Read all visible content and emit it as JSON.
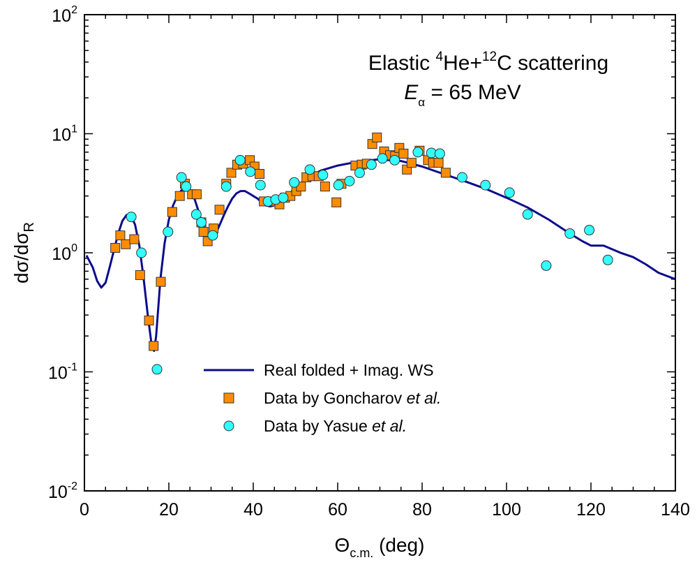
{
  "chart_data": {
    "type": "scatter",
    "x_axis": {
      "label": "Θ",
      "label_subscript": "c.m.",
      "label_suffix": " (deg)",
      "range": [
        0,
        140
      ],
      "ticks": [
        0,
        20,
        40,
        60,
        80,
        100,
        120,
        140
      ],
      "tick_labels": [
        "0",
        "20",
        "40",
        "60",
        "80",
        "100",
        "120",
        "140"
      ]
    },
    "y_axis": {
      "label": "dσ/dσ",
      "label_subscript": "R",
      "scale": "log",
      "range": [
        0.01,
        100
      ],
      "ticks": [
        0.01,
        0.1,
        1,
        10,
        100
      ],
      "tick_labels": [
        {
          "base": "10",
          "exp": "-2"
        },
        {
          "base": "10",
          "exp": "-1"
        },
        {
          "base": "10",
          "exp": "0"
        },
        {
          "base": "10",
          "exp": "1"
        },
        {
          "base": "10",
          "exp": "2"
        }
      ]
    },
    "annotation": {
      "line1_prefix": "Elastic ",
      "sup1": "4",
      "mid": "He+",
      "sup2": "12",
      "line1_suffix": "C scattering",
      "line2_var": "E",
      "line2_sub": "α",
      "line2_value": " = 65 MeV"
    },
    "legend": {
      "placement": "lower-center",
      "entries": [
        {
          "label": "Real folded + Imag. WS",
          "italic": ""
        },
        {
          "label": "Data by Goncharov ",
          "italic": "et al."
        },
        {
          "label": "Data by Yasue ",
          "italic": "et al."
        }
      ]
    },
    "series": [
      {
        "name": "Real folded + Imag. WS",
        "kind": "line",
        "color": "#0a0a8c",
        "points": [
          [
            0.5,
            0.95
          ],
          [
            2,
            0.75
          ],
          [
            3,
            0.58
          ],
          [
            4,
            0.51
          ],
          [
            5,
            0.56
          ],
          [
            6,
            0.76
          ],
          [
            7,
            1.05
          ],
          [
            8,
            1.45
          ],
          [
            9,
            1.85
          ],
          [
            10,
            2.08
          ],
          [
            11,
            2.05
          ],
          [
            12,
            1.72
          ],
          [
            13,
            1.15
          ],
          [
            14,
            0.62
          ],
          [
            15,
            0.3
          ],
          [
            16,
            0.16
          ],
          [
            16.5,
            0.15
          ],
          [
            17,
            0.2
          ],
          [
            18,
            0.6
          ],
          [
            19,
            1.2
          ],
          [
            20,
            1.9
          ],
          [
            21,
            2.5
          ],
          [
            22,
            3.0
          ],
          [
            23,
            3.35
          ],
          [
            24,
            3.5
          ],
          [
            25,
            3.4
          ],
          [
            26,
            2.9
          ],
          [
            27,
            2.25
          ],
          [
            28,
            1.7
          ],
          [
            29,
            1.38
          ],
          [
            30,
            1.3
          ],
          [
            31,
            1.42
          ],
          [
            32,
            1.7
          ],
          [
            33,
            2.05
          ],
          [
            34,
            2.45
          ],
          [
            35,
            2.85
          ],
          [
            36,
            3.15
          ],
          [
            37,
            3.3
          ],
          [
            38,
            3.3
          ],
          [
            39,
            3.15
          ],
          [
            40,
            3.0
          ],
          [
            41,
            2.85
          ],
          [
            42,
            2.65
          ],
          [
            43,
            2.5
          ],
          [
            44,
            2.45
          ],
          [
            45,
            2.5
          ],
          [
            47,
            2.8
          ],
          [
            50,
            3.5
          ],
          [
            53,
            4.3
          ],
          [
            56,
            4.9
          ],
          [
            60,
            5.4
          ],
          [
            65,
            5.85
          ],
          [
            70,
            6.1
          ],
          [
            72,
            6.0
          ],
          [
            75,
            5.9
          ],
          [
            80,
            5.3
          ],
          [
            85,
            4.6
          ],
          [
            90,
            4.0
          ],
          [
            95,
            3.45
          ],
          [
            100,
            2.9
          ],
          [
            105,
            2.4
          ],
          [
            110,
            1.9
          ],
          [
            115,
            1.45
          ],
          [
            118,
            1.25
          ],
          [
            120,
            1.15
          ],
          [
            123,
            1.15
          ],
          [
            127,
            1.0
          ],
          [
            130,
            0.92
          ],
          [
            133,
            0.8
          ],
          [
            136,
            0.68
          ],
          [
            140,
            0.6
          ]
        ]
      },
      {
        "name": "Data by Goncharov et al.",
        "kind": "square",
        "color": "#ff8c00",
        "points": [
          [
            7.3,
            1.1
          ],
          [
            8.5,
            1.4
          ],
          [
            9.8,
            1.18
          ],
          [
            11.8,
            1.3
          ],
          [
            13.2,
            0.65
          ],
          [
            15.3,
            0.27
          ],
          [
            16.4,
            0.165
          ],
          [
            18.1,
            0.57
          ],
          [
            20.8,
            2.2
          ],
          [
            22.6,
            3.0
          ],
          [
            23.8,
            3.8
          ],
          [
            25.5,
            3.1
          ],
          [
            26.6,
            3.1
          ],
          [
            27.7,
            1.8
          ],
          [
            28.2,
            1.5
          ],
          [
            29.2,
            1.25
          ],
          [
            30.6,
            1.6
          ],
          [
            32.0,
            2.3
          ],
          [
            33.6,
            3.8
          ],
          [
            34.8,
            4.7
          ],
          [
            36.2,
            5.5
          ],
          [
            37.6,
            5.6
          ],
          [
            39.2,
            6.0
          ],
          [
            40.3,
            5.3
          ],
          [
            41.5,
            4.6
          ],
          [
            42.5,
            2.7
          ],
          [
            44.9,
            2.7
          ],
          [
            46.2,
            2.55
          ],
          [
            47.5,
            2.9
          ],
          [
            48.8,
            3.0
          ],
          [
            50.2,
            3.3
          ],
          [
            51.3,
            3.6
          ],
          [
            52.6,
            4.3
          ],
          [
            54.0,
            4.4
          ],
          [
            55.5,
            4.4
          ],
          [
            57.0,
            3.6
          ],
          [
            59.7,
            2.65
          ],
          [
            60.9,
            3.8
          ],
          [
            64.2,
            5.4
          ],
          [
            65.7,
            5.5
          ],
          [
            66.9,
            5.6
          ],
          [
            68.2,
            8.2
          ],
          [
            69.3,
            9.3
          ],
          [
            71.0,
            7.1
          ],
          [
            72.4,
            6.6
          ],
          [
            73.6,
            6.5
          ],
          [
            74.6,
            7.6
          ],
          [
            75.6,
            6.8
          ],
          [
            76.4,
            5.0
          ],
          [
            77.5,
            5.7
          ],
          [
            79.4,
            7.2
          ],
          [
            81.4,
            6.0
          ],
          [
            82.6,
            5.7
          ],
          [
            83.9,
            5.7
          ],
          [
            85.6,
            4.7
          ]
        ]
      },
      {
        "name": "Data by Yasue et al.",
        "kind": "circle",
        "color": "#33ffff",
        "points": [
          [
            11.1,
            2.0
          ],
          [
            13.5,
            1.0
          ],
          [
            17.2,
            0.105
          ],
          [
            19.8,
            1.5
          ],
          [
            23.0,
            4.3
          ],
          [
            24.1,
            3.6
          ],
          [
            26.5,
            2.1
          ],
          [
            27.7,
            1.8
          ],
          [
            30.4,
            1.4
          ],
          [
            33.6,
            3.6
          ],
          [
            36.9,
            6.0
          ],
          [
            39.3,
            4.8
          ],
          [
            41.7,
            3.7
          ],
          [
            43.5,
            2.7
          ],
          [
            45.3,
            2.8
          ],
          [
            47.1,
            2.9
          ],
          [
            49.7,
            3.9
          ],
          [
            53.4,
            5.0
          ],
          [
            56.5,
            4.5
          ],
          [
            60.2,
            3.7
          ],
          [
            62.8,
            4.0
          ],
          [
            65.2,
            4.7
          ],
          [
            68.0,
            5.5
          ],
          [
            70.6,
            6.2
          ],
          [
            73.5,
            6.0
          ],
          [
            79.0,
            7.0
          ],
          [
            82.2,
            6.9
          ],
          [
            84.2,
            6.8
          ],
          [
            89.5,
            4.3
          ],
          [
            95.0,
            3.7
          ],
          [
            100.7,
            3.2
          ],
          [
            105.0,
            2.1
          ],
          [
            109.4,
            0.78
          ],
          [
            115.0,
            1.45
          ],
          [
            119.6,
            1.55
          ],
          [
            124.0,
            0.87
          ]
        ]
      }
    ]
  }
}
